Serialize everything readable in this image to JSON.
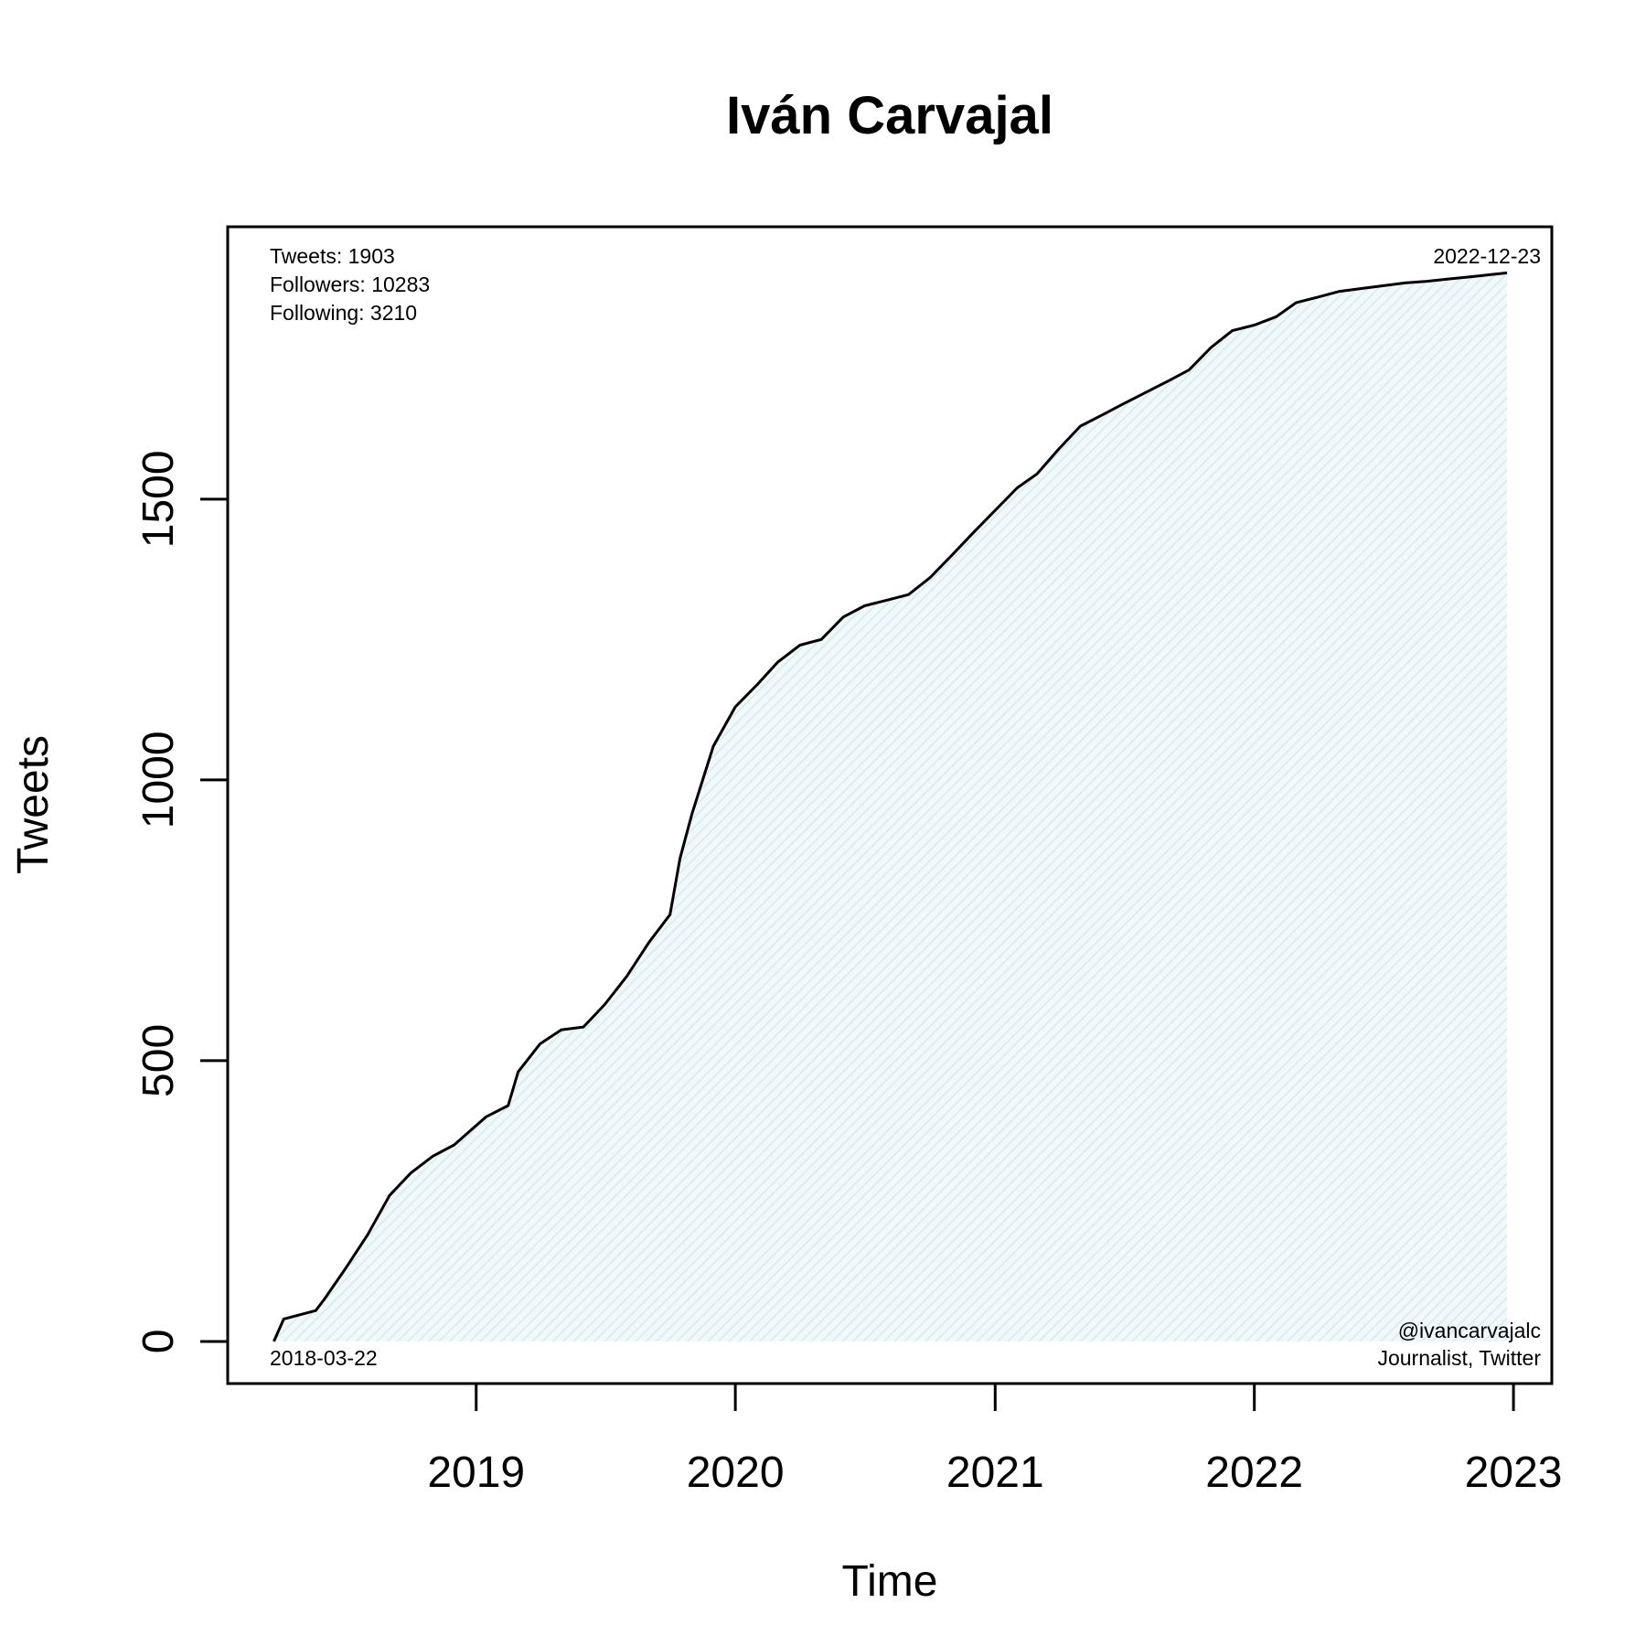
{
  "chart_data": {
    "type": "area",
    "title": "Iván Carvajal",
    "xlabel": "Time",
    "ylabel": "Tweets",
    "x_axis": {
      "type": "date",
      "range": [
        "2018-01-16",
        "2023-02-24"
      ],
      "ticks": [
        "2019-01-01",
        "2020-01-01",
        "2021-01-01",
        "2022-01-01",
        "2023-01-01"
      ],
      "tick_labels": [
        "2019",
        "2020",
        "2021",
        "2022",
        "2023"
      ]
    },
    "y_axis": {
      "range": [
        -75,
        1985
      ],
      "ticks": [
        0,
        500,
        1000,
        1500
      ],
      "tick_labels": [
        "0",
        "500",
        "1000",
        "1500"
      ]
    },
    "grid": false,
    "fill_color": "#e6f3f5",
    "line_color": "#000000",
    "series": [
      {
        "x": [
          "2018-03-22",
          "2018-04-05",
          "2018-05-20",
          "2018-06-01",
          "2018-07-01",
          "2018-08-01",
          "2018-09-01",
          "2018-10-01",
          "2018-11-01",
          "2018-12-01",
          "2019-01-15",
          "2019-02-15",
          "2019-03-01",
          "2019-04-01",
          "2019-05-01",
          "2019-06-01",
          "2019-07-01",
          "2019-08-01",
          "2019-09-01",
          "2019-10-01",
          "2019-10-15",
          "2019-11-01",
          "2019-12-01",
          "2020-01-01",
          "2020-02-01",
          "2020-03-01",
          "2020-04-01",
          "2020-05-01",
          "2020-06-01",
          "2020-07-01",
          "2020-08-01",
          "2020-09-01",
          "2020-10-01",
          "2020-11-01",
          "2020-12-01",
          "2021-01-01",
          "2021-02-01",
          "2021-03-01",
          "2021-04-01",
          "2021-05-01",
          "2021-06-01",
          "2021-07-01",
          "2021-08-01",
          "2021-09-01",
          "2021-10-01",
          "2021-11-01",
          "2021-12-01",
          "2022-01-01",
          "2022-02-01",
          "2022-03-01",
          "2022-04-01",
          "2022-05-01",
          "2022-06-01",
          "2022-07-01",
          "2022-08-01",
          "2022-09-01",
          "2022-10-01",
          "2022-11-01",
          "2022-12-23"
        ],
        "y": [
          0,
          40,
          55,
          75,
          130,
          190,
          260,
          300,
          330,
          350,
          400,
          420,
          480,
          530,
          555,
          560,
          600,
          650,
          710,
          760,
          860,
          940,
          1060,
          1130,
          1170,
          1210,
          1240,
          1250,
          1290,
          1310,
          1320,
          1330,
          1360,
          1400,
          1440,
          1480,
          1520,
          1545,
          1590,
          1630,
          1650,
          1670,
          1690,
          1710,
          1730,
          1770,
          1800,
          1810,
          1825,
          1850,
          1860,
          1870,
          1875,
          1880,
          1885,
          1888,
          1892,
          1896,
          1903
        ]
      }
    ],
    "annotations": {
      "tweets": "Tweets: 1903",
      "followers": "Followers: 10283",
      "following": "Following: 3210",
      "end_date": "2022-12-23",
      "start_date": "2018-03-22",
      "handle": "@ivancarvajalc",
      "description": "Journalist, Twitter"
    }
  }
}
